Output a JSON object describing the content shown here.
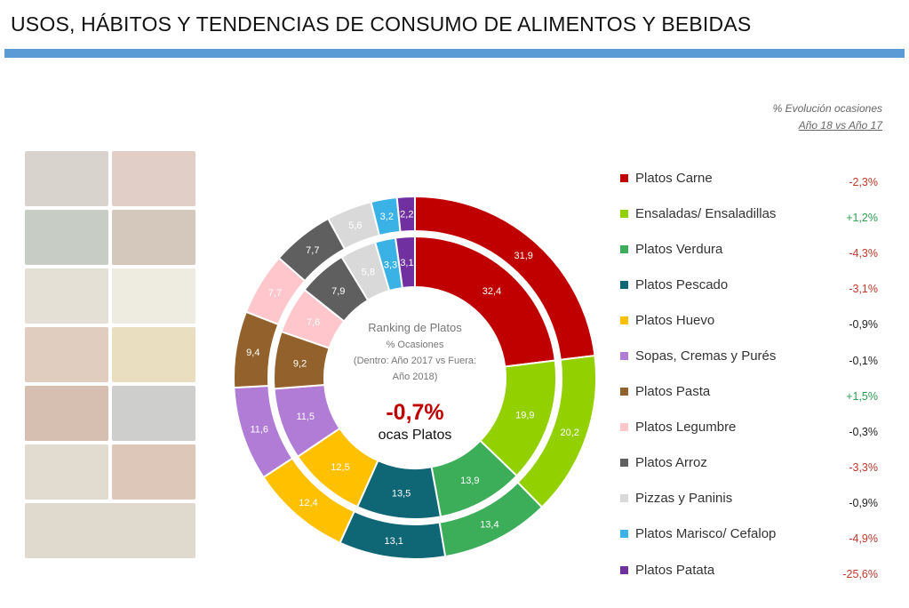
{
  "page_title": "USOS, HÁBITOS Y TENDENCIAS DE CONSUMO DE ALIMENTOS Y BEBIDAS",
  "evolution_header": {
    "line1": "% Evolución ocasiones",
    "line2": "Año 18 vs Año 17"
  },
  "center": {
    "line1": "Ranking de Platos",
    "line2": "% Ocasiones",
    "line3": "(Dentro: Año 2017 vs Fuera:",
    "line4": "Año 2018)",
    "big_value": "-0,7%",
    "big_label": "ocas Platos"
  },
  "colors": {
    "title_bar": "#5b9bd5",
    "positive": "#2e9e4f",
    "negative": "#c0392b",
    "neutral": "#222222"
  },
  "chart_data": {
    "type": "donut",
    "title": "Ranking de Platos",
    "inner_series_name": "Año 2017",
    "outer_series_name": "Año 2018",
    "categories": [
      "Platos Carne",
      "Ensaladas/ Ensaladillas",
      "Platos Verdura",
      "Platos Pescado",
      "Platos Huevo",
      "Sopas, Cremas y Purés",
      "Platos Pasta",
      "Platos Legumbre",
      "Platos Arroz",
      "Pizzas y Paninis",
      "Platos Marisco/ Cefalop",
      "Platos Patata"
    ],
    "colors": [
      "#c00000",
      "#92d000",
      "#3cae5a",
      "#0f6675",
      "#ffc000",
      "#b07cd6",
      "#93612b",
      "#ffc6cc",
      "#5f5f5f",
      "#d9d9d9",
      "#3bb2e5",
      "#7030a0"
    ],
    "inner_values": [
      32.4,
      19.9,
      13.9,
      13.5,
      12.5,
      11.5,
      9.2,
      7.6,
      7.9,
      5.8,
      3.3,
      3.1
    ],
    "outer_values": [
      31.9,
      20.2,
      13.4,
      13.1,
      12.4,
      11.6,
      9.4,
      7.7,
      7.7,
      5.6,
      3.2,
      2.2
    ],
    "inner_labels": [
      "32,4",
      "19,9",
      "13,9",
      "13,5",
      "12,5",
      "11,5",
      "9,2",
      "7,6",
      "7,9",
      "5,8",
      "3,3",
      "3,1"
    ],
    "outer_labels": [
      "31,9",
      "20,2",
      "13,4",
      "13,1",
      "12,4",
      "11,6",
      "9,4",
      "7,7",
      "7,7",
      "5,6",
      "3,2",
      "2,2"
    ],
    "evolution_labels": [
      "-2,3%",
      "+1,2%",
      "-4,3%",
      "-3,1%",
      "-0,9%",
      "-0,1%",
      "+1,5%",
      "-0,3%",
      "-3,3%",
      "-0,9%",
      "-4,9%",
      "-25,6%"
    ],
    "evolution_sign": [
      "neg",
      "pos",
      "neg",
      "neg",
      "neutral",
      "neutral",
      "pos",
      "neutral",
      "neg",
      "neutral",
      "neg",
      "neg"
    ]
  }
}
